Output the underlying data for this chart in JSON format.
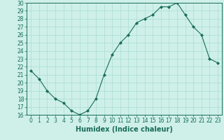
{
  "x": [
    0,
    1,
    2,
    3,
    4,
    5,
    6,
    7,
    8,
    9,
    10,
    11,
    12,
    13,
    14,
    15,
    16,
    17,
    18,
    19,
    20,
    21,
    22,
    23
  ],
  "y": [
    21.5,
    20.5,
    19.0,
    18.0,
    17.5,
    16.5,
    16.0,
    16.5,
    18.0,
    21.0,
    23.5,
    25.0,
    26.0,
    27.5,
    28.0,
    28.5,
    29.5,
    29.5,
    30.0,
    28.5,
    27.0,
    26.0,
    23.0,
    22.5
  ],
  "xlabel": "Humidex (Indice chaleur)",
  "ylim": [
    16,
    30
  ],
  "xlim": [
    -0.5,
    23.5
  ],
  "yticks": [
    16,
    17,
    18,
    19,
    20,
    21,
    22,
    23,
    24,
    25,
    26,
    27,
    28,
    29,
    30
  ],
  "xticks": [
    0,
    1,
    2,
    3,
    4,
    5,
    6,
    7,
    8,
    9,
    10,
    11,
    12,
    13,
    14,
    15,
    16,
    17,
    18,
    19,
    20,
    21,
    22,
    23
  ],
  "line_color": "#1a6b5a",
  "marker": "D",
  "marker_size": 2.0,
  "bg_color": "#cef0e8",
  "grid_color": "#aaddd2",
  "axis_color": "#1a6b5a",
  "tick_color": "#1a6b5a",
  "label_color": "#1a6b5a",
  "xlabel_fontsize": 7,
  "tick_fontsize": 5.5
}
